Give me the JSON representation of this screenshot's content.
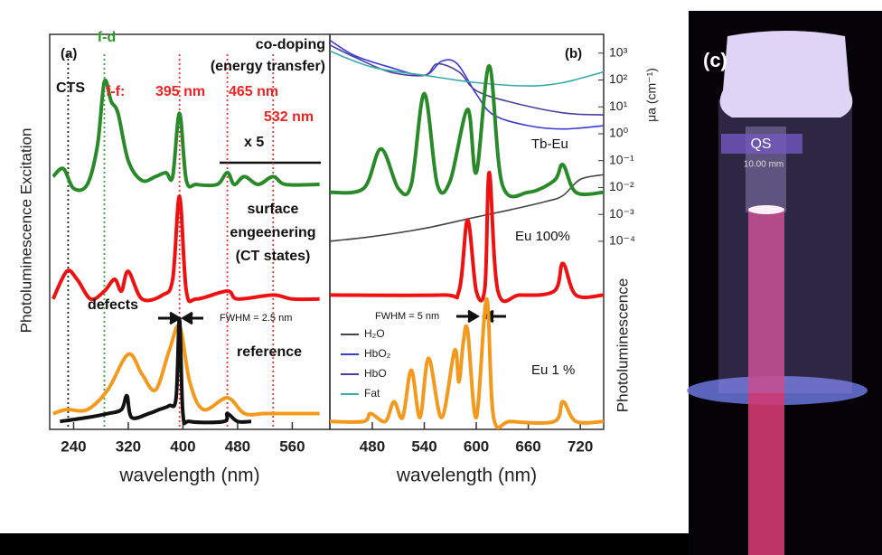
{
  "figure": {
    "panel_label": "(c)",
    "cuvette_label": "QS",
    "cuvette_size": "10.00 mm"
  },
  "chart_data": [
    {
      "type": "line",
      "panel": "(a)",
      "x_label": "wavelength (nm)",
      "y_label": "Photoluminescence Excitation",
      "xlim": [
        205,
        615
      ],
      "xticks": [
        240,
        320,
        400,
        480,
        560
      ],
      "ylim": [
        0,
        100
      ],
      "vlines": [
        {
          "x": 232,
          "color": "#222222"
        },
        {
          "x": 285,
          "color": "#3aa63a"
        },
        {
          "x": 395,
          "color": "#ee3333"
        },
        {
          "x": 465,
          "color": "#ee3333"
        },
        {
          "x": 532,
          "color": "#ee3333"
        }
      ],
      "series": [
        {
          "color": "#2a8a2a",
          "x": [
            210,
            225,
            240,
            260,
            275,
            285,
            295,
            305,
            320,
            340,
            360,
            375,
            385,
            395,
            405,
            420,
            450,
            465,
            475,
            490,
            510,
            532,
            550,
            600
          ],
          "values": [
            64,
            66,
            61,
            62,
            72,
            88,
            83,
            80,
            68,
            63,
            64,
            65,
            64,
            80,
            63,
            62,
            62,
            65,
            62,
            64,
            62,
            64,
            62,
            62
          ]
        },
        {
          "color": "#ee1111",
          "x": [
            210,
            230,
            245,
            265,
            285,
            300,
            310,
            320,
            340,
            370,
            385,
            395,
            405,
            420,
            465,
            480,
            532,
            560,
            600
          ],
          "values": [
            33,
            40,
            38,
            33,
            35,
            38,
            35,
            40,
            33,
            34,
            38,
            59,
            35,
            33,
            35,
            33,
            34,
            33,
            33
          ]
        },
        {
          "color": "#f39a1e",
          "x": [
            210,
            230,
            260,
            290,
            320,
            340,
            360,
            380,
            395,
            410,
            430,
            465,
            490,
            520,
            560,
            600
          ],
          "values": [
            4,
            5,
            5,
            10,
            19,
            14,
            10,
            20,
            26,
            12,
            5,
            8,
            4,
            4,
            4,
            4
          ]
        },
        {
          "color": "#111111",
          "x": [
            220,
            260,
            290,
            310,
            318,
            325,
            350,
            365,
            380,
            390,
            395,
            400,
            410,
            460,
            465,
            480,
            500
          ],
          "values": [
            2,
            3,
            4,
            5,
            8.5,
            3,
            4,
            5,
            6,
            8,
            28,
            4,
            2,
            2,
            4,
            2,
            2
          ]
        }
      ],
      "annotations": [
        {
          "text": "f-d",
          "color": "#2a9a2a"
        },
        {
          "text": "co-doping",
          "color": "#111111"
        },
        {
          "text": "(energy transfer)",
          "color": "#111111"
        },
        {
          "text": "f-f:",
          "color": "#ee2222"
        },
        {
          "text": "395 nm",
          "color": "#ee2222"
        },
        {
          "text": "465 nm",
          "color": "#ee2222"
        },
        {
          "text": "532 nm",
          "color": "#ee2222"
        },
        {
          "text": "CTS",
          "color": "#111111"
        },
        {
          "text": "x 5",
          "color": "#111111"
        },
        {
          "text": "surface",
          "color": "#111111"
        },
        {
          "text": "engeenering",
          "color": "#111111"
        },
        {
          "text": "(CT states)",
          "color": "#111111"
        },
        {
          "text": "defects",
          "color": "#111111"
        },
        {
          "text": "FWHM = 2.5 nm",
          "color": "#111111"
        },
        {
          "text": "reference",
          "color": "#111111"
        }
      ]
    },
    {
      "type": "line",
      "panel": "(b)",
      "x_label": "wavelength (nm)",
      "y_label": "Photoluminescence",
      "y2_label": "μa (cm⁻¹)",
      "xlim": [
        431,
        747
      ],
      "xticks": [
        480,
        540,
        600,
        660,
        720
      ],
      "ylim": [
        0,
        100
      ],
      "y2_log": true,
      "y2lim": [
        1e-11,
        5000
      ],
      "y2ticks": [
        {
          "value": 1000,
          "label": "10³"
        },
        {
          "value": 100,
          "label": "10²"
        },
        {
          "value": 10,
          "label": "10¹"
        },
        {
          "value": 1,
          "label": "10⁰"
        },
        {
          "value": 0.1,
          "label": "10⁻¹"
        },
        {
          "value": 0.01,
          "label": "10⁻²"
        },
        {
          "value": 0.001,
          "label": "10⁻³"
        },
        {
          "value": 0.0001,
          "label": "10⁻⁴"
        }
      ],
      "series": [
        {
          "name": "H₂O",
          "axis": "y2",
          "color": "#444444",
          "x": [
            431,
            480,
            540,
            600,
            640,
            680,
            700,
            720,
            747
          ],
          "values": [
            0.0001,
            0.00015,
            0.0003,
            0.0008,
            0.0015,
            0.003,
            0.005,
            0.02,
            0.03
          ]
        },
        {
          "name": "HbO₂",
          "axis": "y2",
          "color": "#3a3ad8",
          "x": [
            431,
            460,
            500,
            540,
            560,
            578,
            600,
            620,
            660,
            700,
            747
          ],
          "values": [
            3000,
            800,
            300,
            150,
            500,
            400,
            30,
            5,
            2,
            1.5,
            2
          ]
        },
        {
          "name": "HbO",
          "axis": "y2",
          "color": "#4a40a0",
          "x": [
            431,
            460,
            500,
            540,
            555,
            580,
            600,
            640,
            700,
            747
          ],
          "values": [
            2000,
            700,
            200,
            150,
            400,
            200,
            40,
            15,
            6,
            5
          ]
        },
        {
          "name": "Fat",
          "axis": "y2",
          "color": "#38aaaa",
          "x": [
            431,
            480,
            540,
            600,
            660,
            700,
            747
          ],
          "values": [
            1200,
            300,
            150,
            80,
            60,
            80,
            200
          ]
        },
        {
          "color": "#2a8a2a",
          "x": [
            431,
            470,
            490,
            510,
            525,
            540,
            555,
            570,
            590,
            600,
            615,
            630,
            660,
            690,
            700,
            715,
            747
          ],
          "values": [
            60,
            61,
            71,
            61,
            62,
            85,
            62,
            63,
            81,
            65,
            92,
            62,
            60,
            63,
            67,
            60,
            60
          ]
        },
        {
          "color": "#ee1111",
          "x": [
            431,
            560,
            580,
            590,
            600,
            610,
            615,
            625,
            650,
            690,
            700,
            715,
            747
          ],
          "values": [
            34,
            34,
            35,
            53,
            35,
            36,
            65,
            35,
            34,
            35,
            42,
            34,
            34
          ]
        },
        {
          "color": "#f39a1e",
          "x": [
            431,
            470,
            478,
            495,
            505,
            515,
            525,
            535,
            545,
            560,
            575,
            580,
            585,
            590,
            600,
            612,
            620,
            640,
            690,
            700,
            715,
            747
          ],
          "values": [
            2,
            2,
            4,
            2,
            7,
            3,
            15,
            3,
            18,
            3,
            20,
            12,
            22,
            25,
            3,
            33,
            3,
            2,
            2,
            7,
            2,
            2
          ]
        }
      ],
      "annotations": [
        {
          "text": "Tb-Eu",
          "color": "#111111"
        },
        {
          "text": "Eu 100%",
          "color": "#111111"
        },
        {
          "text": "Eu 1 %",
          "color": "#111111"
        },
        {
          "text": "FWHM = 5 nm",
          "color": "#111111"
        }
      ]
    }
  ]
}
